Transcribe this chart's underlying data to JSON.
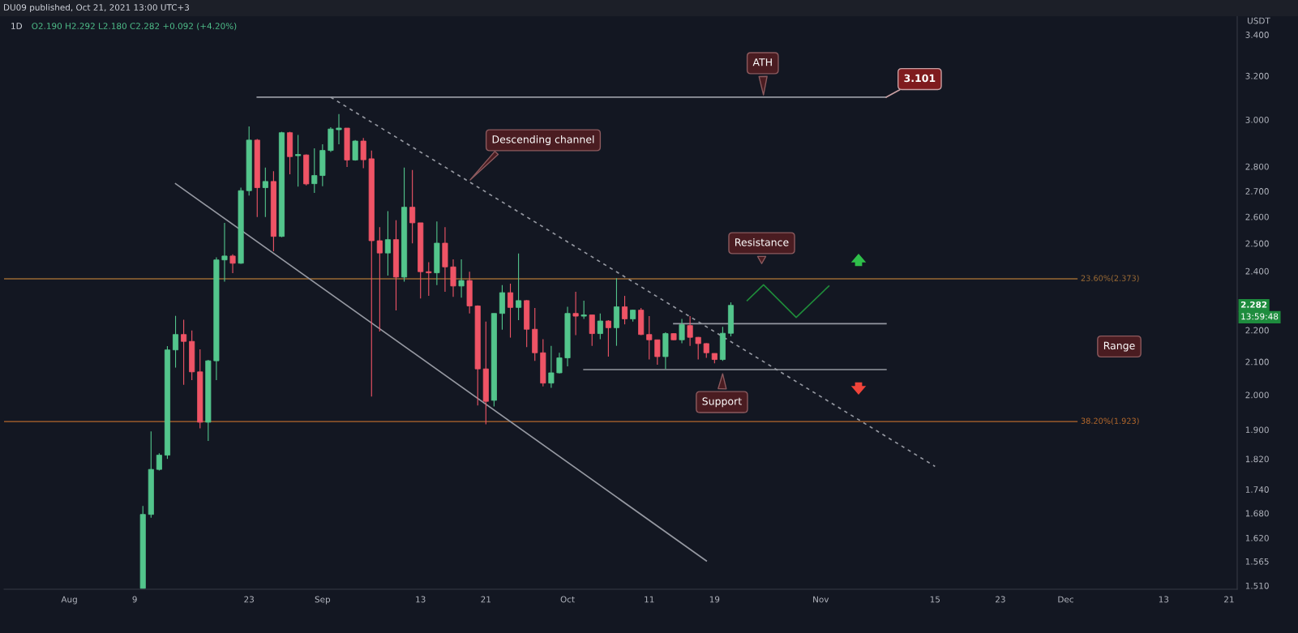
{
  "chart_data": {
    "type": "candlestick",
    "title": "1D",
    "subtitle": "O2.190 H2.292 L2.180 C2.282 +0.092 (+4.20%)",
    "ylabel": "USDT",
    "log": true,
    "x": [
      "2021-08-10",
      "2021-08-11",
      "2021-08-12",
      "2021-08-13",
      "2021-08-14",
      "2021-08-15",
      "2021-08-16",
      "2021-08-17",
      "2021-08-18",
      "2021-08-19",
      "2021-08-20",
      "2021-08-21",
      "2021-08-22",
      "2021-08-23",
      "2021-08-24",
      "2021-08-25",
      "2021-08-26",
      "2021-08-27",
      "2021-08-28",
      "2021-08-29",
      "2021-08-30",
      "2021-08-31",
      "2021-09-01",
      "2021-09-02",
      "2021-09-03",
      "2021-09-04",
      "2021-09-05",
      "2021-09-06",
      "2021-09-07",
      "2021-09-08",
      "2021-09-09",
      "2021-09-10",
      "2021-09-11",
      "2021-09-12",
      "2021-09-13",
      "2021-09-14",
      "2021-09-15",
      "2021-09-16",
      "2021-09-17",
      "2021-09-18",
      "2021-09-19",
      "2021-09-20",
      "2021-09-21",
      "2021-09-22",
      "2021-09-23",
      "2021-09-24",
      "2021-09-25",
      "2021-09-26",
      "2021-09-27",
      "2021-09-28",
      "2021-09-29",
      "2021-09-30",
      "2021-10-01",
      "2021-10-02",
      "2021-10-03",
      "2021-10-04",
      "2021-10-05",
      "2021-10-06",
      "2021-10-07",
      "2021-10-08",
      "2021-10-09",
      "2021-10-10",
      "2021-10-11",
      "2021-10-12",
      "2021-10-13",
      "2021-10-14",
      "2021-10-15",
      "2021-10-16",
      "2021-10-17",
      "2021-10-18",
      "2021-10-19",
      "2021-10-20",
      "2021-10-21"
    ],
    "ohlc": [
      [
        1.504,
        1.698,
        1.504,
        1.677
      ],
      [
        1.677,
        1.895,
        1.669,
        1.792
      ],
      [
        1.792,
        1.835,
        1.789,
        1.83
      ],
      [
        1.83,
        2.149,
        1.82,
        2.137
      ],
      [
        2.137,
        2.247,
        2.082,
        2.186
      ],
      [
        2.186,
        2.234,
        2.03,
        2.164
      ],
      [
        2.164,
        2.199,
        2.044,
        2.069
      ],
      [
        2.069,
        2.139,
        1.904,
        1.921
      ],
      [
        1.921,
        2.106,
        1.869,
        2.103
      ],
      [
        2.103,
        2.449,
        2.044,
        2.44
      ],
      [
        2.44,
        2.577,
        2.363,
        2.454
      ],
      [
        2.454,
        2.46,
        2.393,
        2.428
      ],
      [
        2.428,
        2.714,
        2.426,
        2.702
      ],
      [
        2.702,
        2.97,
        2.683,
        2.911
      ],
      [
        2.911,
        2.916,
        2.599,
        2.714
      ],
      [
        2.714,
        2.796,
        2.599,
        2.739
      ],
      [
        2.739,
        2.781,
        2.471,
        2.526
      ],
      [
        2.526,
        2.947,
        2.523,
        2.943
      ],
      [
        2.943,
        2.947,
        2.768,
        2.841
      ],
      [
        2.845,
        2.933,
        2.718,
        2.85
      ],
      [
        2.848,
        2.85,
        2.723,
        2.729
      ],
      [
        2.73,
        2.876,
        2.693,
        2.763
      ],
      [
        2.763,
        2.893,
        2.72,
        2.867
      ],
      [
        2.867,
        2.967,
        2.861,
        2.959
      ],
      [
        2.956,
        3.025,
        2.893,
        2.963
      ],
      [
        2.963,
        2.963,
        2.798,
        2.827
      ],
      [
        2.827,
        2.911,
        2.824,
        2.907
      ],
      [
        2.907,
        2.92,
        2.793,
        2.828
      ],
      [
        2.832,
        2.867,
        1.995,
        2.51
      ],
      [
        2.51,
        2.561,
        2.196,
        2.465
      ],
      [
        2.465,
        2.622,
        2.384,
        2.514
      ],
      [
        2.514,
        2.587,
        2.265,
        2.379
      ],
      [
        2.379,
        2.796,
        2.363,
        2.637
      ],
      [
        2.637,
        2.786,
        2.5,
        2.577
      ],
      [
        2.577,
        2.577,
        2.305,
        2.398
      ],
      [
        2.398,
        2.432,
        2.314,
        2.394
      ],
      [
        2.394,
        2.582,
        2.351,
        2.501
      ],
      [
        2.501,
        2.561,
        2.328,
        2.415
      ],
      [
        2.415,
        2.442,
        2.311,
        2.348
      ],
      [
        2.348,
        2.442,
        2.308,
        2.367
      ],
      [
        2.367,
        2.398,
        2.255,
        2.28
      ],
      [
        2.28,
        2.282,
        1.969,
        2.078
      ],
      [
        2.078,
        2.228,
        1.915,
        1.981
      ],
      [
        1.984,
        2.255,
        1.966,
        2.255
      ],
      [
        2.255,
        2.351,
        2.202,
        2.325
      ],
      [
        2.325,
        2.356,
        2.176,
        2.275
      ],
      [
        2.275,
        2.463,
        2.233,
        2.298
      ],
      [
        2.298,
        2.3,
        2.146,
        2.203
      ],
      [
        2.203,
        2.273,
        2.103,
        2.128
      ],
      [
        2.128,
        2.171,
        2.025,
        2.035
      ],
      [
        2.035,
        2.15,
        2.021,
        2.066
      ],
      [
        2.066,
        2.128,
        2.064,
        2.112
      ],
      [
        2.112,
        2.277,
        2.086,
        2.255
      ],
      [
        2.255,
        2.328,
        2.184,
        2.246
      ],
      [
        2.246,
        2.298,
        2.237,
        2.25
      ],
      [
        2.25,
        2.25,
        2.15,
        2.189
      ],
      [
        2.189,
        2.255,
        2.171,
        2.23
      ],
      [
        2.23,
        2.233,
        2.116,
        2.208
      ],
      [
        2.208,
        2.375,
        2.15,
        2.277
      ],
      [
        2.277,
        2.314,
        2.219,
        2.237
      ],
      [
        2.237,
        2.268,
        2.228,
        2.266
      ],
      [
        2.266,
        2.273,
        2.184,
        2.186
      ],
      [
        2.186,
        2.246,
        2.107,
        2.169
      ],
      [
        2.169,
        2.169,
        2.091,
        2.116
      ],
      [
        2.116,
        2.193,
        2.078,
        2.189
      ],
      [
        2.189,
        2.19,
        2.168,
        2.169
      ],
      [
        2.169,
        2.237,
        2.158,
        2.218
      ],
      [
        2.215,
        2.246,
        2.15,
        2.177
      ],
      [
        2.177,
        2.178,
        2.107,
        2.157
      ],
      [
        2.157,
        2.158,
        2.112,
        2.128
      ],
      [
        2.126,
        2.126,
        2.095,
        2.107
      ],
      [
        2.107,
        2.211,
        2.103,
        2.19
      ],
      [
        2.19,
        2.292,
        2.18,
        2.282
      ]
    ],
    "colors": [
      "#53c58c",
      "#53c58c",
      "#53c58c",
      "#53c58c",
      "#53c58c",
      "#ef5466",
      "#ef5466",
      "#ef5466",
      "#53c58c",
      "#53c58c",
      "#53c58c",
      "#ef5466",
      "#53c58c",
      "#53c58c",
      "#ef5466",
      "#53c58c",
      "#ef5466",
      "#53c58c",
      "#ef5466",
      "#53c58c",
      "#ef5466",
      "#53c58c",
      "#53c58c",
      "#53c58c",
      "#53c58c",
      "#ef5466",
      "#53c58c",
      "#ef5466",
      "#ef5466",
      "#ef5466",
      "#53c58c",
      "#ef5466",
      "#53c58c",
      "#ef5466",
      "#ef5466",
      "#ef5466",
      "#53c58c",
      "#ef5466",
      "#ef5466",
      "#53c58c",
      "#ef5466",
      "#ef5466",
      "#ef5466",
      "#53c58c",
      "#53c58c",
      "#ef5466",
      "#53c58c",
      "#ef5466",
      "#ef5466",
      "#ef5466",
      "#53c58c",
      "#53c58c",
      "#53c58c",
      "#ef5466",
      "#53c58c",
      "#ef5466",
      "#53c58c",
      "#ef5466",
      "#53c58c",
      "#ef5466",
      "#53c58c",
      "#ef5466",
      "#ef5466",
      "#ef5466",
      "#53c58c",
      "#ef5466",
      "#53c58c",
      "#ef5466",
      "#ef5466",
      "#ef5466",
      "#ef5466",
      "#53c58c",
      "#53c58c"
    ],
    "series": [
      {
        "type": "line",
        "x": [
          "2021-08-24",
          "2021-11-09"
        ],
        "values": [
          3.101,
          3.101
        ],
        "color": "#9598a1"
      },
      {
        "type": "line",
        "x": [
          "2021-09-02",
          "2021-11-15"
        ],
        "values": [
          3.101,
          1.8
        ],
        "color": "#9598a1",
        "line_style": "dashed"
      },
      {
        "type": "line",
        "x": [
          "2021-08-14",
          "2021-10-18"
        ],
        "values": [
          2.73,
          1.566
        ],
        "color": "#9598a1"
      },
      {
        "type": "line",
        "x": [
          "2021-10-14",
          "2021-11-09"
        ],
        "values": [
          2.221,
          2.221
        ],
        "color": "#9598a1"
      },
      {
        "type": "line",
        "x": [
          "2021-10-03",
          "2021-11-09"
        ],
        "values": [
          2.076,
          2.076
        ],
        "color": "#9598a1"
      },
      {
        "type": "line",
        "x": [
          "2021-10-23",
          "2021-10-25",
          "2021-10-29",
          "2021-11-02"
        ],
        "values": [
          2.298,
          2.352,
          2.242,
          2.348
        ],
        "color": "#1f8b3a"
      }
    ],
    "ref_lines": [
      {
        "axis": "y",
        "value": 2.373,
        "label": "23.60%(2.373)",
        "color": "#9a6a35"
      },
      {
        "axis": "y",
        "value": 1.923,
        "label": "38.20%(1.923)",
        "color": "#b5692c"
      }
    ],
    "annotations": [
      "DU09 published, Oct 21, 2021 13:00 UTC+3",
      {
        "text": "ATH",
        "x": "2021-10-25",
        "y": 3.101
      },
      {
        "text": "3.101",
        "x": "2021-11-09",
        "y": 3.101
      },
      "Descending channel",
      "Resistance",
      {
        "text": "Support",
        "x": "2021-10-20",
        "y": 2.07
      },
      "Range",
      {
        "text": "2.282",
        "y": 2.282
      },
      "13:59:48"
    ],
    "xlim": [
      "2021-07-24",
      "2021-12-22"
    ],
    "xticks": [
      {
        "value": "2021-08-01",
        "label": "Aug"
      },
      {
        "value": "2021-08-09",
        "label": "9"
      },
      {
        "value": "2021-08-23",
        "label": "23"
      },
      {
        "value": "2021-09-01",
        "label": "Sep"
      },
      {
        "value": "2021-09-13",
        "label": "13"
      },
      {
        "value": "2021-09-21",
        "label": "21"
      },
      {
        "value": "2021-10-01",
        "label": "Oct"
      },
      {
        "value": "2021-10-11",
        "label": "11"
      },
      {
        "value": "2021-10-19",
        "label": "19"
      },
      {
        "value": "2021-11-01",
        "label": "Nov"
      },
      {
        "value": "2021-11-15",
        "label": "15"
      },
      {
        "value": "2021-11-23",
        "label": "23"
      },
      {
        "value": "2021-12-01",
        "label": "Dec"
      },
      {
        "value": "2021-12-13",
        "label": "13"
      },
      {
        "value": "2021-12-21",
        "label": "21"
      }
    ],
    "ylim": [
      1.502,
      3.494
    ],
    "yticks": [
      {
        "value": 1.51,
        "label": "1.510"
      },
      1.565,
      {
        "value": 1.62,
        "label": "1.620"
      },
      {
        "value": 1.68,
        "label": "1.680"
      },
      {
        "value": 1.74,
        "label": "1.740"
      },
      {
        "value": 1.82,
        "label": "1.820"
      },
      {
        "value": 1.9,
        "label": "1.900"
      },
      {
        "value": 2.0,
        "label": "2.000"
      },
      {
        "value": 2.1,
        "label": "2.100"
      },
      {
        "value": 2.2,
        "label": "2.200"
      },
      {
        "value": 2.4,
        "label": "2.400"
      },
      {
        "value": 2.5,
        "label": "2.500"
      },
      {
        "value": 2.6,
        "label": "2.600"
      },
      {
        "value": 2.7,
        "label": "2.700"
      },
      {
        "value": 2.8,
        "label": "2.800"
      },
      {
        "value": 3.0,
        "label": "3.000"
      },
      {
        "value": 3.2,
        "label": "3.200"
      },
      {
        "value": 3.4,
        "label": "3.400"
      }
    ]
  }
}
